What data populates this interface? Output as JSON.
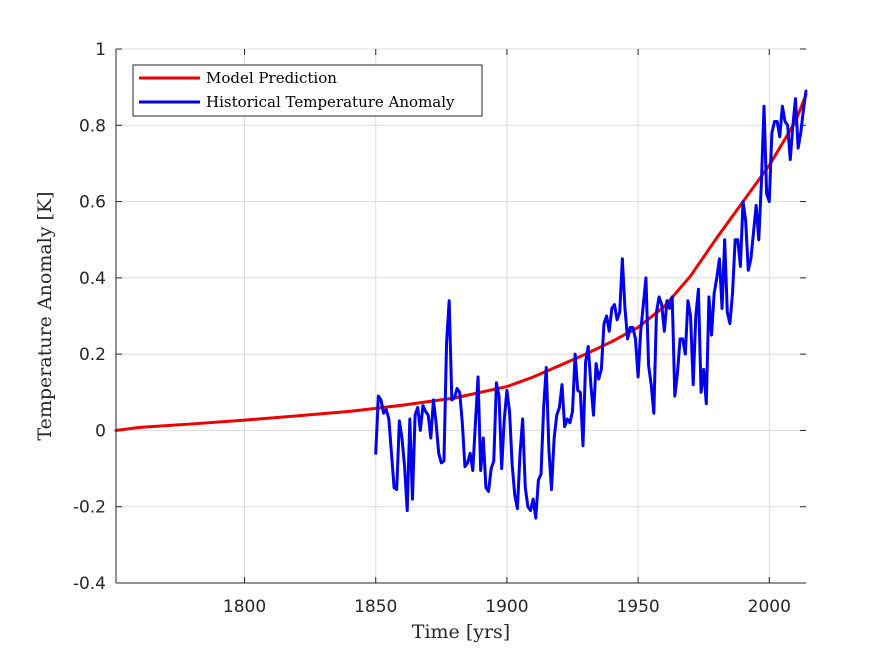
{
  "chart_data": {
    "type": "line",
    "title": "",
    "xlabel": "Time [yrs]",
    "ylabel": "Temperature Anomaly [K]",
    "xlim": [
      1751,
      2014
    ],
    "ylim": [
      -0.4,
      1.0
    ],
    "x_ticks": [
      1800,
      1850,
      1900,
      1950,
      2000
    ],
    "x_tick_labels": [
      "1800",
      "1850",
      "1900",
      "1950",
      "2000"
    ],
    "y_ticks": [
      -0.4,
      -0.2,
      0,
      0.2,
      0.4,
      0.6,
      0.8,
      1.0
    ],
    "y_tick_labels": [
      "-0.4",
      "-0.2",
      "0",
      "0.2",
      "0.4",
      "0.6",
      "0.8",
      "1"
    ],
    "grid": true,
    "legend_position": "top-left",
    "series": [
      {
        "name": "Model Prediction",
        "color": "#ee0000",
        "x": [
          1751,
          1760,
          1780,
          1800,
          1820,
          1840,
          1860,
          1880,
          1900,
          1910,
          1920,
          1930,
          1940,
          1950,
          1960,
          1970,
          1980,
          1990,
          2000,
          2010,
          2014
        ],
        "y": [
          0.0,
          0.008,
          0.017,
          0.027,
          0.038,
          0.05,
          0.066,
          0.085,
          0.115,
          0.14,
          0.17,
          0.2,
          0.233,
          0.27,
          0.325,
          0.405,
          0.505,
          0.6,
          0.695,
          0.81,
          0.88
        ]
      },
      {
        "name": "Historical Temperature Anomaly",
        "color": "#0000ee",
        "x": [
          1850,
          1851,
          1852,
          1853,
          1854,
          1855,
          1856,
          1857,
          1858,
          1859,
          1860,
          1861,
          1862,
          1863,
          1864,
          1865,
          1866,
          1867,
          1868,
          1869,
          1870,
          1871,
          1872,
          1873,
          1874,
          1875,
          1876,
          1877,
          1878,
          1879,
          1880,
          1881,
          1882,
          1883,
          1884,
          1885,
          1886,
          1887,
          1888,
          1889,
          1890,
          1891,
          1892,
          1893,
          1894,
          1895,
          1896,
          1897,
          1898,
          1899,
          1900,
          1901,
          1902,
          1903,
          1904,
          1905,
          1906,
          1907,
          1908,
          1909,
          1910,
          1911,
          1912,
          1913,
          1914,
          1915,
          1916,
          1917,
          1918,
          1919,
          1920,
          1921,
          1922,
          1923,
          1924,
          1925,
          1926,
          1927,
          1928,
          1929,
          1930,
          1931,
          1932,
          1933,
          1934,
          1935,
          1936,
          1937,
          1938,
          1939,
          1940,
          1941,
          1942,
          1943,
          1944,
          1945,
          1946,
          1947,
          1948,
          1949,
          1950,
          1951,
          1952,
          1953,
          1954,
          1955,
          1956,
          1957,
          1958,
          1959,
          1960,
          1961,
          1962,
          1963,
          1964,
          1965,
          1966,
          1967,
          1968,
          1969,
          1970,
          1971,
          1972,
          1973,
          1974,
          1975,
          1976,
          1977,
          1978,
          1979,
          1980,
          1981,
          1982,
          1983,
          1984,
          1985,
          1986,
          1987,
          1988,
          1989,
          1990,
          1991,
          1992,
          1993,
          1994,
          1995,
          1996,
          1997,
          1998,
          1999,
          2000,
          2001,
          2002,
          2003,
          2004,
          2005,
          2006,
          2007,
          2008,
          2009,
          2010,
          2011,
          2012,
          2013,
          2014
        ],
        "y": [
          -0.06,
          0.09,
          0.08,
          0.045,
          0.055,
          0.03,
          -0.06,
          -0.15,
          -0.155,
          0.025,
          -0.02,
          -0.095,
          -0.21,
          0.03,
          -0.18,
          0.04,
          0.06,
          0.0,
          0.065,
          0.05,
          0.04,
          -0.02,
          0.08,
          0.02,
          -0.06,
          -0.085,
          -0.08,
          0.23,
          0.34,
          0.08,
          0.085,
          0.11,
          0.1,
          0.02,
          -0.095,
          -0.085,
          -0.06,
          -0.105,
          0.02,
          0.14,
          -0.105,
          -0.02,
          -0.15,
          -0.16,
          -0.1,
          -0.08,
          0.125,
          0.09,
          -0.1,
          0.03,
          0.105,
          0.05,
          -0.09,
          -0.17,
          -0.205,
          -0.06,
          0.03,
          -0.15,
          -0.2,
          -0.21,
          -0.18,
          -0.23,
          -0.13,
          -0.115,
          0.06,
          0.165,
          -0.05,
          -0.155,
          -0.02,
          0.04,
          0.06,
          0.12,
          0.01,
          0.03,
          0.02,
          0.05,
          0.2,
          0.105,
          0.1,
          -0.04,
          0.18,
          0.22,
          0.12,
          0.04,
          0.175,
          0.135,
          0.16,
          0.28,
          0.3,
          0.26,
          0.32,
          0.33,
          0.29,
          0.31,
          0.45,
          0.32,
          0.24,
          0.27,
          0.27,
          0.24,
          0.14,
          0.26,
          0.33,
          0.4,
          0.17,
          0.12,
          0.045,
          0.31,
          0.35,
          0.33,
          0.26,
          0.34,
          0.32,
          0.35,
          0.09,
          0.15,
          0.24,
          0.24,
          0.2,
          0.34,
          0.3,
          0.12,
          0.3,
          0.37,
          0.1,
          0.16,
          0.07,
          0.35,
          0.25,
          0.36,
          0.4,
          0.45,
          0.32,
          0.5,
          0.31,
          0.28,
          0.36,
          0.5,
          0.5,
          0.43,
          0.6,
          0.55,
          0.42,
          0.45,
          0.52,
          0.59,
          0.5,
          0.65,
          0.85,
          0.62,
          0.6,
          0.78,
          0.81,
          0.81,
          0.77,
          0.85,
          0.81,
          0.8,
          0.71,
          0.8,
          0.87,
          0.74,
          0.78,
          0.84,
          0.89
        ]
      }
    ]
  }
}
